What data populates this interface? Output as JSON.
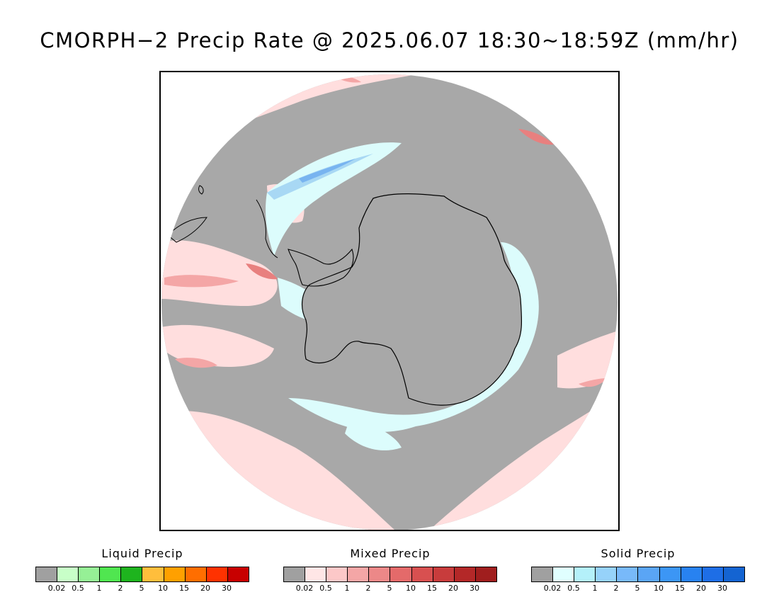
{
  "title": "CMORPH−2 Precip Rate @ 2025.06.07 18:30~18:59Z (mm/hr)",
  "map": {
    "projection": "south-polar-stereographic",
    "background_colors": {
      "no_precip": "#a8a8a8",
      "mixed_light": "#ffdede",
      "mixed_medium": "#f4a6a6",
      "mixed_heavy": "#e06a6a",
      "solid_light": "#dcfcfc",
      "solid_medium": "#a8d8f4",
      "solid_heavy": "#78b4f0",
      "coastline": "#000000"
    }
  },
  "legends": [
    {
      "title": "Liquid Precip",
      "colors": [
        "#a0a0a0",
        "#c8ffc8",
        "#96f096",
        "#50e650",
        "#1eb41e",
        "#ffbe3c",
        "#ffa000",
        "#ff6e00",
        "#ff3200",
        "#c80000"
      ],
      "ticks": [
        "0.02",
        "0.5",
        "1",
        "2",
        "5",
        "10",
        "15",
        "20",
        "30"
      ]
    },
    {
      "title": "Mixed Precip",
      "colors": [
        "#a0a0a0",
        "#ffe6e6",
        "#fcc8c8",
        "#f4a6a6",
        "#ec8888",
        "#e46a6a",
        "#d85050",
        "#c83c3c",
        "#b42828",
        "#a01e1e"
      ],
      "ticks": [
        "0.02",
        "0.5",
        "1",
        "2",
        "5",
        "10",
        "15",
        "20",
        "30"
      ]
    },
    {
      "title": "Solid Precip",
      "colors": [
        "#a0a0a0",
        "#e0ffff",
        "#b4f0fa",
        "#96d2fa",
        "#78b9fa",
        "#5aa5f5",
        "#3c96f5",
        "#2882f0",
        "#1e6ee6",
        "#1464d2"
      ],
      "ticks": [
        "0.02",
        "0.5",
        "1",
        "2",
        "5",
        "10",
        "15",
        "20",
        "30"
      ]
    }
  ]
}
